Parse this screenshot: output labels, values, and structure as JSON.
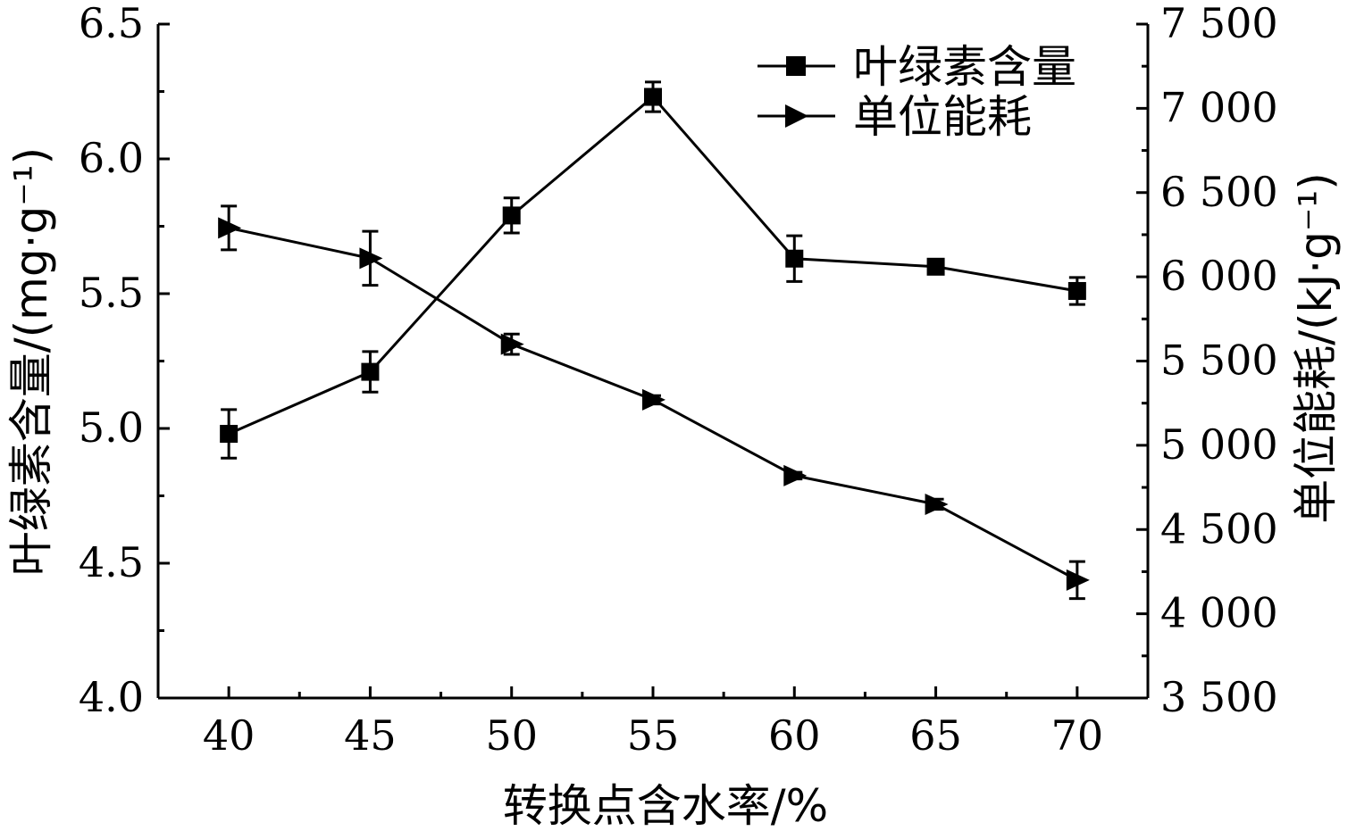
{
  "chart_data": {
    "type": "line",
    "xlabel": "转换点含水率/%",
    "ylabel_left": "叶绿素含量/(mg·g⁻¹)",
    "ylabel_right": "单位能耗/(kJ·g⁻¹)",
    "x": [
      40,
      45,
      50,
      55,
      60,
      65,
      70
    ],
    "x_tick_labels": [
      "40",
      "45",
      "50",
      "55",
      "60",
      "65",
      "70"
    ],
    "xlim": [
      37.5,
      72.5
    ],
    "ylim_left": [
      4.0,
      6.5
    ],
    "ylim_right": [
      3500,
      7500
    ],
    "y_left_tick_labels": [
      "4.0",
      "4.5",
      "5.0",
      "5.5",
      "6.0",
      "6.5"
    ],
    "y_left_ticks": [
      4.0,
      4.5,
      5.0,
      5.5,
      6.0,
      6.5
    ],
    "y_right_tick_labels": [
      "3 500",
      "4 000",
      "4 500",
      "5 000",
      "5 500",
      "6 000",
      "6 500",
      "7 000",
      "7 500"
    ],
    "y_right_ticks": [
      3500,
      4000,
      4500,
      5000,
      5500,
      6000,
      6500,
      7000,
      7500
    ],
    "series": [
      {
        "name": "叶绿素含量",
        "axis": "left",
        "marker": "square",
        "values": [
          4.98,
          5.21,
          5.79,
          6.23,
          5.63,
          5.6,
          5.51
        ],
        "errors": [
          0.09,
          0.075,
          0.065,
          0.055,
          0.085,
          0.02,
          0.05
        ]
      },
      {
        "name": "单位能耗",
        "axis": "right",
        "marker": "triangle-right",
        "values": [
          6290,
          6110,
          5600,
          5270,
          4820,
          4650,
          4200
        ],
        "errors": [
          130,
          160,
          60,
          25,
          20,
          30,
          110
        ]
      }
    ],
    "legend_position": "top-right",
    "grid": false
  }
}
